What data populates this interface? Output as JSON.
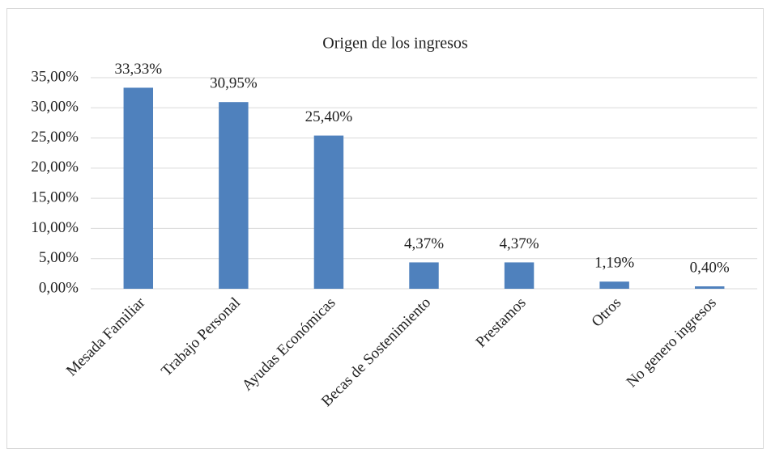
{
  "chart_data": {
    "type": "bar",
    "title": "Origen de los ingresos",
    "categories": [
      "Mesada Familiar",
      "Trabajo Personal",
      "Ayudas Económicas",
      "Becas de Sostenimiento",
      "Prestamos",
      "Otros",
      "No genero ingresos"
    ],
    "values": [
      33.33,
      30.95,
      25.4,
      4.37,
      4.37,
      1.19,
      0.4
    ],
    "value_labels": [
      "33,33%",
      "30,95%",
      "25,40%",
      "4,37%",
      "4,37%",
      "1,19%",
      "0,40%"
    ],
    "color": "#4f81bd",
    "ylim": [
      0,
      35
    ],
    "yticks": [
      {
        "value": 0,
        "label": "0,00%"
      },
      {
        "value": 5,
        "label": "5,00%"
      },
      {
        "value": 10,
        "label": "10,00%"
      },
      {
        "value": 15,
        "label": "15,00%"
      },
      {
        "value": 20,
        "label": "20,00%"
      },
      {
        "value": 25,
        "label": "25,00%"
      },
      {
        "value": 30,
        "label": "30,00%"
      },
      {
        "value": 35,
        "label": "35,00%"
      }
    ],
    "grid": true
  }
}
